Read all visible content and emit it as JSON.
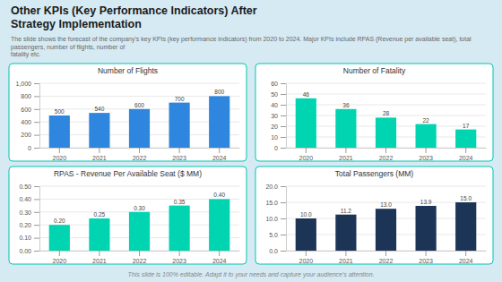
{
  "title": "Other KPIs (Key Performance Indicators) After\nStrategy Implementation",
  "subtitle": "The slide shows the forecast of the company's key KPIs (key performance indicators) from 2020 to 2024. Major KPIs include RPAS (Revenue per available seat), total passengers, number of flights, number of\nfatality etc.",
  "annotations": [
    "This slide is 100% editable. Adapt it to your needs and capture your audience's attention."
  ],
  "chart_data": [
    {
      "type": "bar",
      "title": "Number of Flights",
      "categories": [
        "2020",
        "2021",
        "2022",
        "2023",
        "2024"
      ],
      "values": [
        500,
        540,
        600,
        700,
        800
      ],
      "color": "#2e86de",
      "ylim": [
        0,
        1000
      ],
      "yticks": [
        0,
        200,
        400,
        600,
        800,
        {
          "value": 1000,
          "label": "1,000"
        }
      ],
      "grid": true,
      "data_labels": true
    },
    {
      "type": "bar",
      "title": "Number of Fatality",
      "categories": [
        "2020",
        "2021",
        "2022",
        "2023",
        "2024"
      ],
      "values": [
        46,
        36,
        28,
        22,
        17
      ],
      "color": "#00d4b0",
      "ylim": [
        0,
        60
      ],
      "yticks": [
        0,
        10,
        20,
        30,
        40,
        50,
        60
      ],
      "grid": true,
      "data_labels": true
    },
    {
      "type": "bar",
      "title": "RPAS - Revenue Per Available Seat ($ MM)",
      "categories": [
        "2020",
        "2021",
        "2022",
        "2023",
        "2024"
      ],
      "values": [
        0.2,
        0.25,
        0.3,
        0.35,
        0.4
      ],
      "value_labels": [
        "0.20",
        "0.25",
        "0.30",
        "0.35",
        "0.40"
      ],
      "color": "#00d4b0",
      "ylim": [
        0,
        0.5
      ],
      "yticks": [
        {
          "value": 0.0,
          "label": "0.00"
        },
        {
          "value": 0.1,
          "label": "0.10"
        },
        {
          "value": 0.2,
          "label": "0.20"
        },
        {
          "value": 0.3,
          "label": "0.30"
        },
        {
          "value": 0.4,
          "label": "0.40"
        },
        {
          "value": 0.5,
          "label": "0.50"
        }
      ],
      "grid": true,
      "data_labels": true
    },
    {
      "type": "bar",
      "title": "Total Passengers (MM)",
      "categories": [
        "2020",
        "2021",
        "2022",
        "2023",
        "2024"
      ],
      "values": [
        10.0,
        11.2,
        13.0,
        13.9,
        15.0
      ],
      "value_labels": [
        "10.0",
        "11.2",
        "13.0",
        "13.9",
        "15.0"
      ],
      "color": "#1c3557",
      "ylim": [
        0.0,
        20.0
      ],
      "yticks": [
        {
          "value": 0.0,
          "label": "0.0"
        },
        {
          "value": 5.0,
          "label": "5.0"
        },
        {
          "value": 10.0,
          "label": "10.0"
        },
        {
          "value": 15.0,
          "label": "15.0"
        },
        {
          "value": 20.0,
          "label": "20.0"
        }
      ],
      "grid": true,
      "data_labels": true
    }
  ]
}
